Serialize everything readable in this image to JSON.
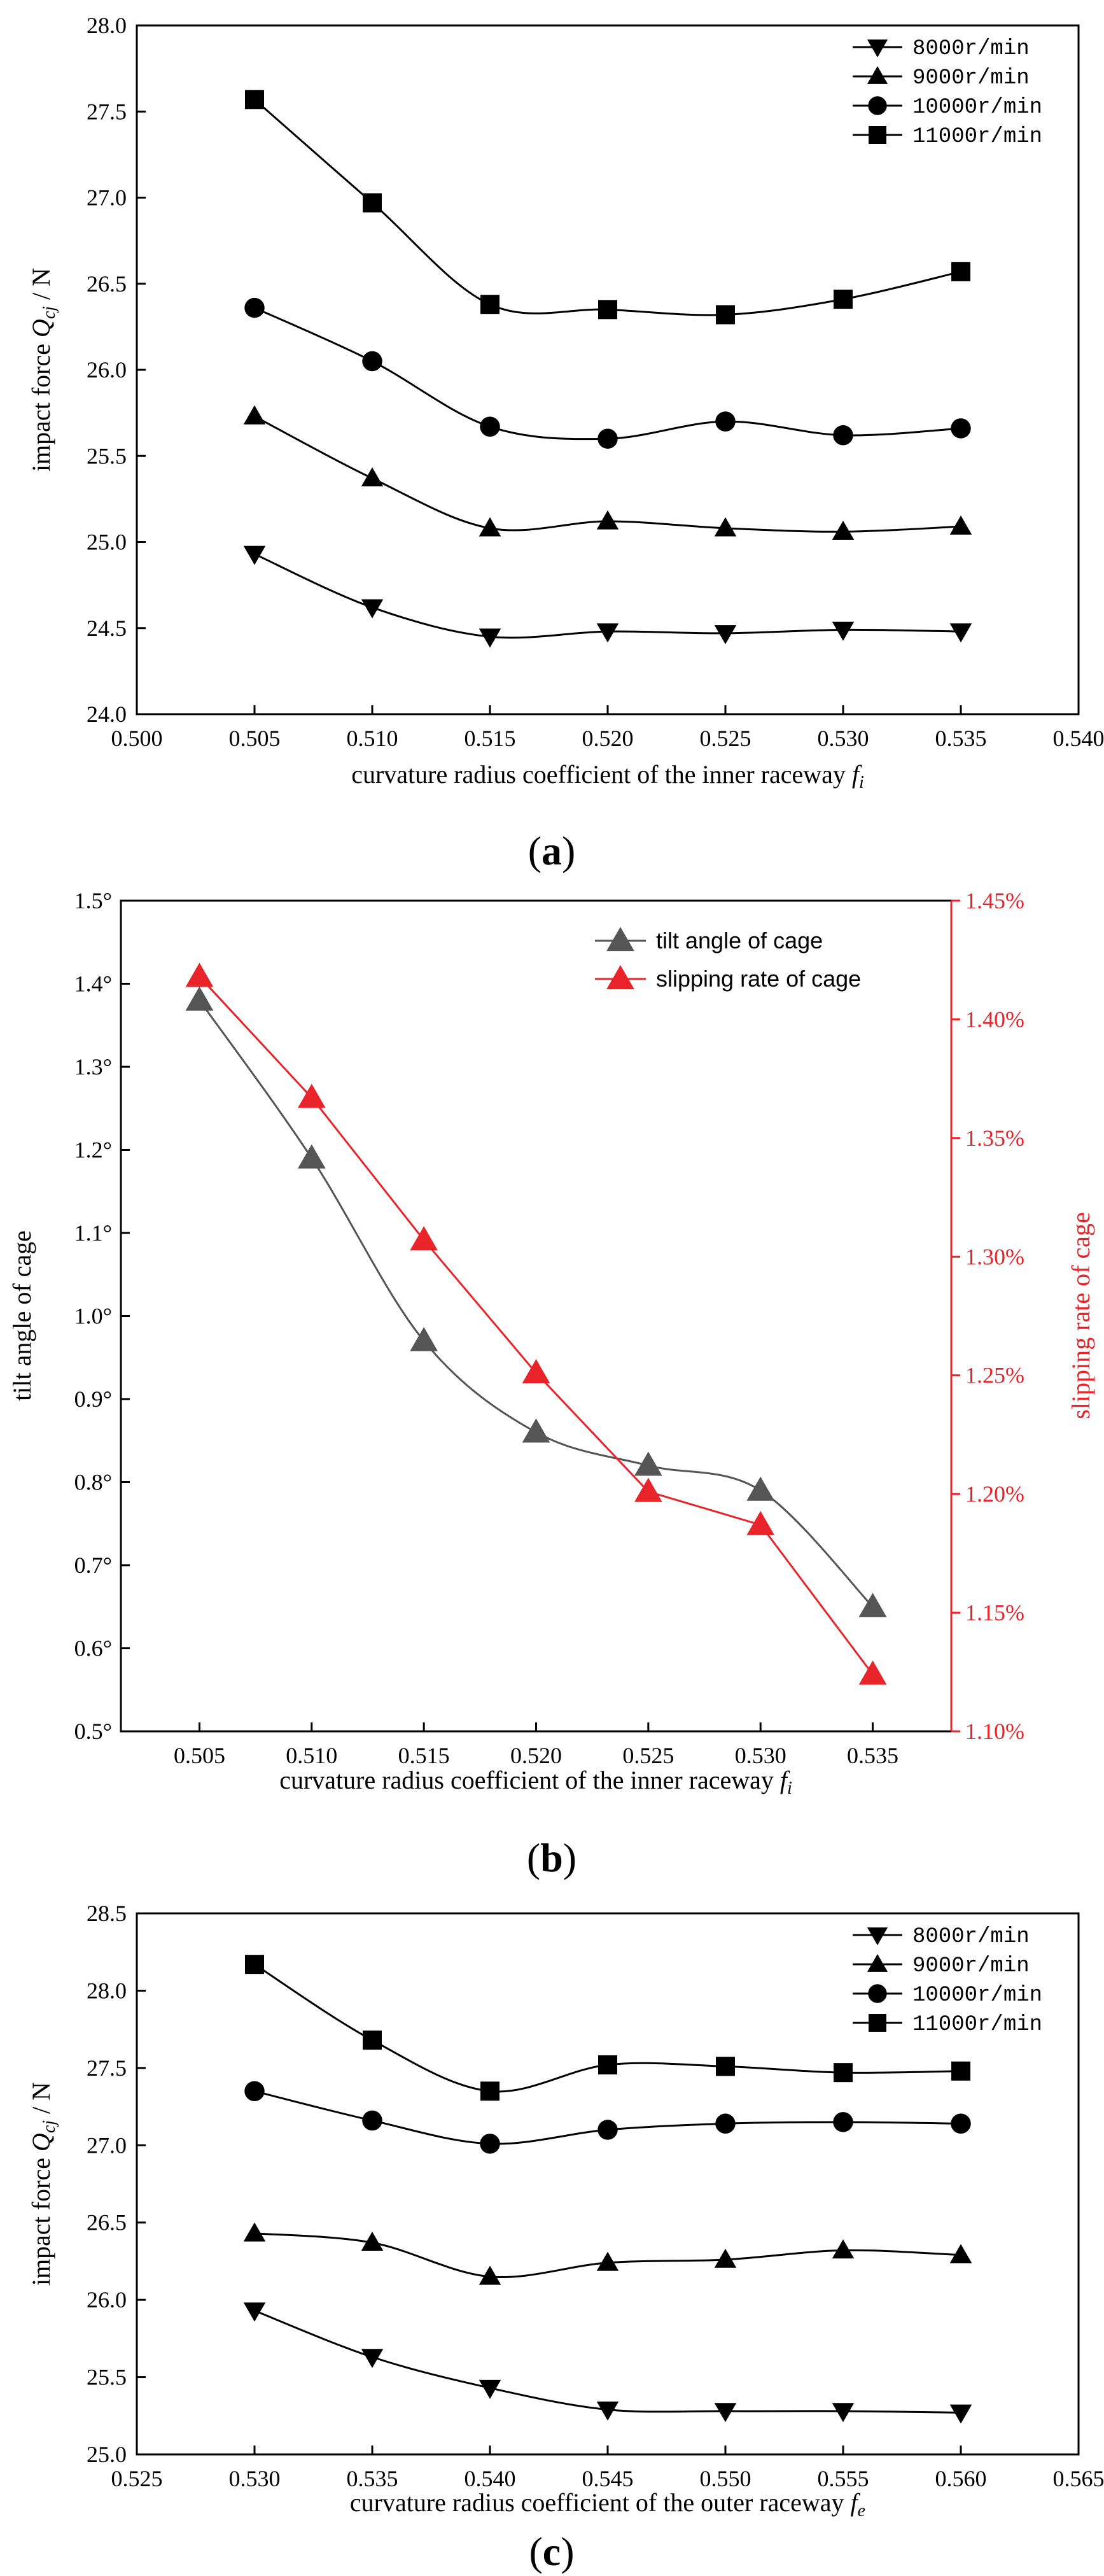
{
  "chart_data": [
    {
      "type": "line",
      "panel": "a",
      "panel_label": "a",
      "x": [
        0.505,
        0.51,
        0.515,
        0.52,
        0.525,
        0.53,
        0.535
      ],
      "xlim": [
        0.5,
        0.54
      ],
      "ylim": [
        24.0,
        28.0
      ],
      "xticks": [
        "0.500",
        "0.505",
        "0.510",
        "0.515",
        "0.520",
        "0.525",
        "0.530",
        "0.535",
        "0.540"
      ],
      "yticks": [
        "24.0",
        "24.5",
        "25.0",
        "25.5",
        "26.0",
        "26.5",
        "27.0",
        "27.5",
        "28.0"
      ],
      "xlabel": "curvature radius coefficient of the inner raceway",
      "xlabel_symbol": "f",
      "xlabel_sub": "i",
      "ylabel": "impact force",
      "ylabel_symbol": "Q",
      "ylabel_sub": "cj",
      "ylabel_unit": " / N",
      "legend_position": "top-right",
      "series": [
        {
          "name": "8000r/min",
          "marker": "triangle-down",
          "values": [
            24.93,
            24.62,
            24.45,
            24.48,
            24.47,
            24.49,
            24.48
          ]
        },
        {
          "name": "9000r/min",
          "marker": "triangle-up",
          "values": [
            25.73,
            25.37,
            25.08,
            25.12,
            25.08,
            25.06,
            25.09
          ]
        },
        {
          "name": "10000r/min",
          "marker": "circle",
          "values": [
            26.36,
            26.05,
            25.67,
            25.6,
            25.7,
            25.62,
            25.66
          ]
        },
        {
          "name": "11000r/min",
          "marker": "square",
          "values": [
            27.57,
            26.97,
            26.38,
            26.35,
            26.32,
            26.41,
            26.57
          ]
        }
      ]
    },
    {
      "type": "line",
      "panel": "b",
      "panel_label": "b",
      "x": [
        0.505,
        0.51,
        0.515,
        0.52,
        0.525,
        0.53,
        0.535
      ],
      "xlim": [
        0.5015,
        0.5385
      ],
      "xticks": [
        "0.505",
        "0.510",
        "0.515",
        "0.520",
        "0.525",
        "0.530",
        "0.535"
      ],
      "xlabel": "curvature radius coefficient of the inner raceway",
      "xlabel_symbol": "f",
      "xlabel_sub": "i",
      "ylabel_left": "tilt angle of cage",
      "ylim_left": [
        0.5,
        1.5
      ],
      "yticks_left": [
        "0.5°",
        "0.6°",
        "0.7°",
        "0.8°",
        "0.9°",
        "1.0°",
        "1.1°",
        "1.2°",
        "1.3°",
        "1.4°",
        "1.5°"
      ],
      "ylabel_right": "slipping rate of cage",
      "ylim_right": [
        1.1,
        1.45
      ],
      "yticks_right": [
        "1.10%",
        "1.15%",
        "1.20%",
        "1.25%",
        "1.30%",
        "1.35%",
        "1.40%",
        "1.45%"
      ],
      "legend_position": "top-right",
      "colors": {
        "tilt": "#555555",
        "slip": "#e8242a"
      },
      "series": [
        {
          "name": "tilt angle of cage",
          "axis": "left",
          "values": [
            1.38,
            1.19,
            0.97,
            0.86,
            0.82,
            0.79,
            0.65
          ]
        },
        {
          "name": "slipping rate of cage",
          "axis": "right",
          "values": [
            1.418,
            1.367,
            1.307,
            1.251,
            1.201,
            1.187,
            1.124
          ]
        }
      ]
    },
    {
      "type": "line",
      "panel": "c",
      "panel_label": "c",
      "x": [
        0.53,
        0.535,
        0.54,
        0.545,
        0.55,
        0.555,
        0.56
      ],
      "xlim": [
        0.525,
        0.565
      ],
      "ylim": [
        25.0,
        28.5
      ],
      "xticks": [
        "0.525",
        "0.530",
        "0.535",
        "0.540",
        "0.545",
        "0.550",
        "0.555",
        "0.560",
        "0.565"
      ],
      "yticks": [
        "25.0",
        "25.5",
        "26.0",
        "26.5",
        "27.0",
        "27.5",
        "28.0",
        "28.5"
      ],
      "xlabel": "curvature radius coefficient of the outer raceway",
      "xlabel_symbol": "f",
      "xlabel_sub": "e",
      "ylabel": "impact force",
      "ylabel_symbol": "Q",
      "ylabel_sub": "cj",
      "ylabel_unit": " / N",
      "legend_position": "top-right",
      "series": [
        {
          "name": "8000r/min",
          "marker": "triangle-down",
          "values": [
            25.93,
            25.63,
            25.43,
            25.29,
            25.28,
            25.28,
            25.27
          ]
        },
        {
          "name": "9000r/min",
          "marker": "triangle-up",
          "values": [
            26.43,
            26.37,
            26.15,
            26.24,
            26.26,
            26.32,
            26.29
          ]
        },
        {
          "name": "10000r/min",
          "marker": "circle",
          "values": [
            27.35,
            27.16,
            27.01,
            27.1,
            27.14,
            27.15,
            27.14
          ]
        },
        {
          "name": "11000r/min",
          "marker": "square",
          "values": [
            28.17,
            27.68,
            27.35,
            27.52,
            27.51,
            27.47,
            27.48
          ]
        }
      ]
    }
  ]
}
